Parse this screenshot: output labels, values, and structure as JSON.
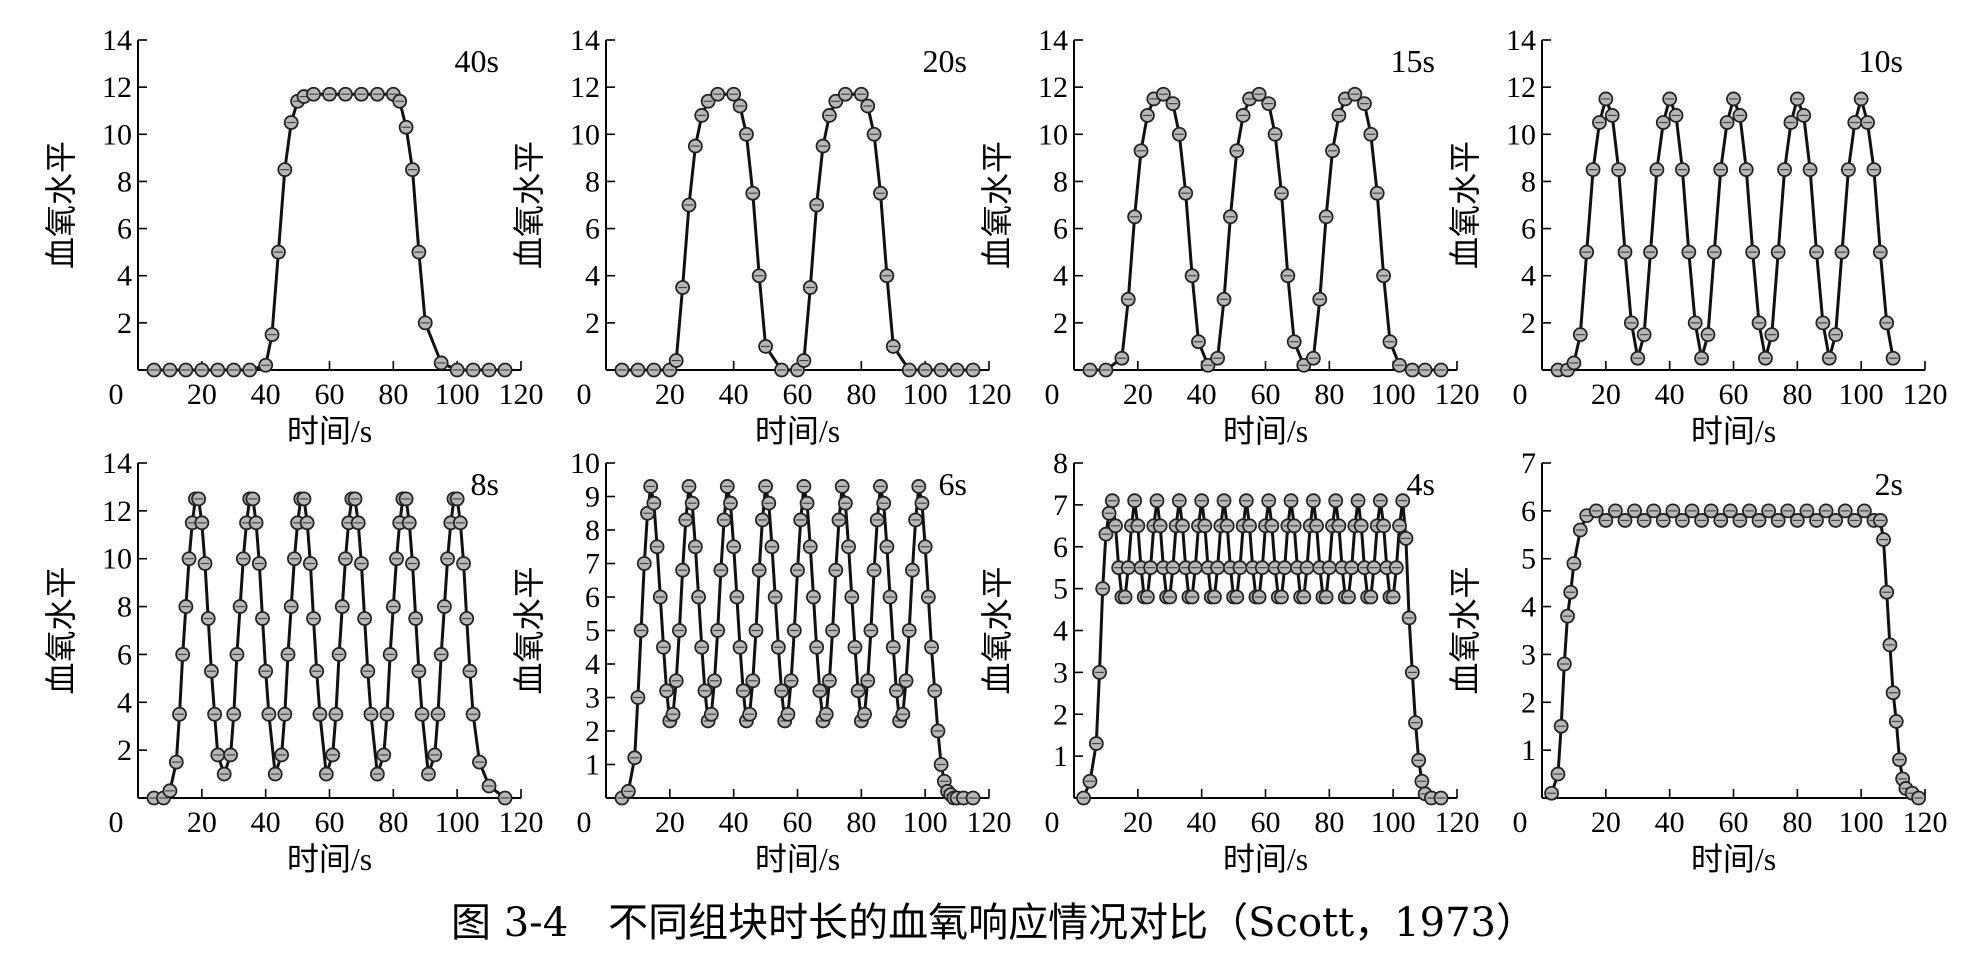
{
  "caption": "图 3-4　不同组块时长的血氧响应情况对比（Scott，1973）",
  "chart_data": [
    {
      "type": "line",
      "title": "",
      "annotation": "40s",
      "xlabel": "时间/s",
      "ylabel": "血氧水平",
      "xlim": [
        0,
        120
      ],
      "ylim": [
        0,
        14
      ],
      "xticks": [
        0,
        20,
        40,
        60,
        80,
        100,
        120
      ],
      "yticks": [
        2,
        4,
        6,
        8,
        10,
        12,
        14
      ],
      "x": [
        5,
        10,
        15,
        20,
        25,
        30,
        35,
        40,
        42,
        44,
        46,
        48,
        50,
        52,
        55,
        60,
        65,
        70,
        75,
        80,
        82,
        84,
        86,
        88,
        90,
        95,
        100,
        105,
        110,
        115
      ],
      "y": [
        0,
        0,
        0,
        0,
        0,
        0,
        0,
        0.2,
        1.5,
        5,
        8.5,
        10.5,
        11.4,
        11.6,
        11.7,
        11.7,
        11.7,
        11.7,
        11.7,
        11.7,
        11.4,
        10.3,
        8.5,
        5,
        2,
        0.3,
        0,
        0,
        0,
        0
      ]
    },
    {
      "type": "line",
      "title": "",
      "annotation": "20s",
      "xlabel": "时间/s",
      "ylabel": "血氧水平",
      "xlim": [
        0,
        120
      ],
      "ylim": [
        0,
        14
      ],
      "xticks": [
        0,
        20,
        40,
        60,
        80,
        100,
        120
      ],
      "yticks": [
        2,
        4,
        6,
        8,
        10,
        12,
        14
      ],
      "x": [
        5,
        10,
        15,
        20,
        22,
        24,
        26,
        28,
        30,
        32,
        35,
        40,
        42,
        44,
        46,
        48,
        50,
        55,
        60,
        62,
        64,
        66,
        68,
        70,
        72,
        75,
        80,
        82,
        84,
        86,
        88,
        90,
        95,
        100,
        105,
        110,
        115
      ],
      "y": [
        0,
        0,
        0,
        0,
        0.4,
        3.5,
        7,
        9.5,
        10.8,
        11.4,
        11.7,
        11.7,
        11.2,
        10,
        7.5,
        4,
        1,
        0,
        0,
        0.4,
        3.5,
        7,
        9.5,
        10.8,
        11.4,
        11.7,
        11.7,
        11.2,
        10,
        7.5,
        4,
        1,
        0,
        0,
        0,
        0,
        0
      ]
    },
    {
      "type": "line",
      "title": "",
      "annotation": "15s",
      "xlabel": "时间/s",
      "ylabel": "血氧水平",
      "xlim": [
        0,
        120
      ],
      "ylim": [
        0,
        14
      ],
      "xticks": [
        0,
        20,
        40,
        60,
        80,
        100,
        120
      ],
      "yticks": [
        2,
        4,
        6,
        8,
        10,
        12,
        14
      ],
      "x": [
        5,
        10,
        15,
        17,
        19,
        21,
        23,
        25,
        28,
        31,
        33,
        35,
        37,
        39,
        42,
        45,
        47,
        49,
        51,
        53,
        55,
        58,
        61,
        63,
        65,
        67,
        69,
        72,
        75,
        77,
        79,
        81,
        83,
        85,
        88,
        91,
        93,
        95,
        97,
        99,
        102,
        106,
        110,
        115
      ],
      "y": [
        0,
        0,
        0.5,
        3,
        6.5,
        9.3,
        10.8,
        11.5,
        11.7,
        11.3,
        10,
        7.5,
        4,
        1.2,
        0.2,
        0.5,
        3,
        6.5,
        9.3,
        10.8,
        11.5,
        11.7,
        11.3,
        10,
        7.5,
        4,
        1.2,
        0.2,
        0.5,
        3,
        6.5,
        9.3,
        10.8,
        11.5,
        11.7,
        11.3,
        10,
        7.5,
        4,
        1.2,
        0.2,
        0,
        0,
        0
      ]
    },
    {
      "type": "line",
      "title": "",
      "annotation": "10s",
      "xlabel": "时间/s",
      "ylabel": "血氧水平",
      "xlim": [
        0,
        120
      ],
      "ylim": [
        0,
        14
      ],
      "xticks": [
        0,
        20,
        40,
        60,
        80,
        100,
        120
      ],
      "yticks": [
        2,
        4,
        6,
        8,
        10,
        12,
        14
      ],
      "x": [
        5,
        8,
        10,
        12,
        14,
        16,
        18,
        20,
        22,
        24,
        26,
        28,
        30,
        32,
        34,
        36,
        38,
        40,
        42,
        44,
        46,
        48,
        50,
        52,
        54,
        56,
        58,
        60,
        62,
        64,
        66,
        68,
        70,
        72,
        74,
        76,
        78,
        80,
        82,
        84,
        86,
        88,
        90,
        92,
        94,
        96,
        98,
        100,
        102,
        104,
        106,
        108,
        110
      ],
      "y": [
        0,
        0,
        0.3,
        1.5,
        5,
        8.5,
        10.5,
        11.5,
        10.8,
        8.5,
        5,
        2,
        0.5,
        1.5,
        5,
        8.5,
        10.5,
        11.5,
        10.8,
        8.5,
        5,
        2,
        0.5,
        1.5,
        5,
        8.5,
        10.5,
        11.5,
        10.8,
        8.5,
        5,
        2,
        0.5,
        1.5,
        5,
        8.5,
        10.5,
        11.5,
        10.8,
        8.5,
        5,
        2,
        0.5,
        1.5,
        5,
        8.5,
        10.5,
        11.5,
        10.5,
        8.5,
        5,
        2,
        0.5
      ]
    },
    {
      "type": "line",
      "title": "",
      "annotation": "8s",
      "xlabel": "时间/s",
      "ylabel": "血氧水平",
      "xlim": [
        0,
        120
      ],
      "ylim": [
        0,
        14
      ],
      "xticks": [
        0,
        20,
        40,
        60,
        80,
        100,
        120
      ],
      "yticks": [
        2,
        4,
        6,
        8,
        10,
        12,
        14
      ],
      "x": [
        5,
        8,
        10,
        12,
        13,
        14,
        15,
        16,
        17,
        18,
        19,
        20,
        21,
        22,
        23,
        24,
        25,
        27,
        29,
        30,
        31,
        32,
        33,
        34,
        35,
        36,
        37,
        38,
        39,
        40,
        41,
        43,
        45,
        46,
        47,
        48,
        49,
        50,
        51,
        52,
        53,
        54,
        55,
        56,
        57,
        59,
        61,
        62,
        63,
        64,
        65,
        66,
        67,
        68,
        69,
        70,
        71,
        72,
        73,
        75,
        77,
        78,
        79,
        80,
        81,
        82,
        83,
        84,
        85,
        86,
        87,
        88,
        89,
        91,
        93,
        94,
        95,
        96,
        97,
        98,
        99,
        100,
        101,
        102,
        103,
        104,
        105,
        107,
        110,
        115
      ],
      "y": [
        0,
        0,
        0.3,
        1.5,
        3.5,
        6,
        8,
        10,
        11.5,
        12.5,
        12.5,
        11.5,
        9.8,
        7.5,
        5.3,
        3.5,
        1.8,
        1,
        1.8,
        3.5,
        6,
        8,
        10,
        11.5,
        12.5,
        12.5,
        11.5,
        9.8,
        7.5,
        5.3,
        3.5,
        1,
        1.8,
        3.5,
        6,
        8,
        10,
        11.5,
        12.5,
        12.5,
        11.5,
        9.8,
        7.5,
        5.3,
        3.5,
        1,
        1.8,
        3.5,
        6,
        8,
        10,
        11.5,
        12.5,
        12.5,
        11.5,
        9.8,
        7.5,
        5.3,
        3.5,
        1,
        1.8,
        3.5,
        6,
        8,
        10,
        11.5,
        12.5,
        12.5,
        11.5,
        9.8,
        7.5,
        5.3,
        3.5,
        1,
        1.8,
        3.5,
        6,
        8,
        10,
        11.5,
        12.5,
        12.5,
        11.5,
        9.8,
        7.5,
        5.3,
        3.5,
        1.5,
        0.5,
        0
      ]
    },
    {
      "type": "line",
      "title": "",
      "annotation": "6s",
      "xlabel": "时间/s",
      "ylabel": "血氧水平",
      "xlim": [
        0,
        120
      ],
      "ylim": [
        0,
        10
      ],
      "xticks": [
        0,
        20,
        40,
        60,
        80,
        100,
        120
      ],
      "yticks": [
        1,
        2,
        3,
        4,
        5,
        6,
        7,
        8,
        9,
        10
      ],
      "x": [
        5,
        7,
        9,
        10,
        11,
        12,
        13,
        14,
        15,
        16,
        17,
        18,
        19,
        20,
        21,
        22,
        23,
        24,
        25,
        26,
        27,
        28,
        29,
        30,
        31,
        32,
        33,
        34,
        35,
        36,
        37,
        38,
        39,
        40,
        41,
        42,
        43,
        44,
        45,
        46,
        47,
        48,
        49,
        50,
        51,
        52,
        53,
        54,
        55,
        56,
        57,
        58,
        59,
        60,
        61,
        62,
        63,
        64,
        65,
        66,
        67,
        68,
        69,
        70,
        71,
        72,
        73,
        74,
        75,
        76,
        77,
        78,
        79,
        80,
        81,
        82,
        83,
        84,
        85,
        86,
        87,
        88,
        89,
        90,
        91,
        92,
        93,
        94,
        95,
        96,
        97,
        98,
        99,
        100,
        101,
        102,
        103,
        104,
        105,
        106,
        107,
        108,
        109,
        110,
        112,
        115
      ],
      "y": [
        0,
        0.2,
        1.2,
        3,
        5,
        7,
        8.5,
        9.3,
        8.8,
        7.5,
        6,
        4.5,
        3.2,
        2.3,
        2.5,
        3.5,
        5,
        6.8,
        8.3,
        9.3,
        8.8,
        7.5,
        6,
        4.5,
        3.2,
        2.3,
        2.5,
        3.5,
        5,
        6.8,
        8.3,
        9.3,
        8.8,
        7.5,
        6,
        4.5,
        3.2,
        2.3,
        2.5,
        3.5,
        5,
        6.8,
        8.3,
        9.3,
        8.8,
        7.5,
        6,
        4.5,
        3.2,
        2.3,
        2.5,
        3.5,
        5,
        6.8,
        8.3,
        9.3,
        8.8,
        7.5,
        6,
        4.5,
        3.2,
        2.3,
        2.5,
        3.5,
        5,
        6.8,
        8.3,
        9.3,
        8.8,
        7.5,
        6,
        4.5,
        3.2,
        2.3,
        2.5,
        3.5,
        5,
        6.8,
        8.3,
        9.3,
        8.8,
        7.5,
        6,
        4.5,
        3.2,
        2.3,
        2.5,
        3.5,
        5,
        6.8,
        8.3,
        9.3,
        8.8,
        7.5,
        6,
        4.5,
        3.2,
        2,
        1,
        0.5,
        0.2,
        0.1,
        0,
        0,
        0,
        0
      ]
    },
    {
      "type": "line",
      "title": "",
      "annotation": "4s",
      "xlabel": "时间/s",
      "ylabel": "血氧水平",
      "xlim": [
        0,
        120
      ],
      "ylim": [
        0,
        8
      ],
      "xticks": [
        0,
        20,
        40,
        60,
        80,
        100,
        120
      ],
      "yticks": [
        1,
        2,
        3,
        4,
        5,
        6,
        7,
        8
      ],
      "x": [
        3,
        5,
        7,
        8,
        9,
        10,
        11,
        12,
        13,
        14,
        15,
        16,
        17,
        18,
        19,
        20,
        21,
        22,
        23,
        24,
        25,
        26,
        27,
        28,
        29,
        30,
        31,
        32,
        33,
        34,
        35,
        36,
        37,
        38,
        39,
        40,
        41,
        42,
        43,
        44,
        45,
        46,
        47,
        48,
        49,
        50,
        51,
        52,
        53,
        54,
        55,
        56,
        57,
        58,
        59,
        60,
        61,
        62,
        63,
        64,
        65,
        66,
        67,
        68,
        69,
        70,
        71,
        72,
        73,
        74,
        75,
        76,
        77,
        78,
        79,
        80,
        81,
        82,
        83,
        84,
        85,
        86,
        87,
        88,
        89,
        90,
        91,
        92,
        93,
        94,
        95,
        96,
        97,
        98,
        99,
        100,
        101,
        102,
        103,
        104,
        105,
        106,
        107,
        108,
        109,
        110,
        112,
        115
      ],
      "y": [
        0,
        0.4,
        1.3,
        3,
        5,
        6.3,
        6.8,
        7.1,
        6.5,
        5.5,
        4.8,
        4.8,
        5.5,
        6.5,
        7.1,
        6.5,
        5.5,
        4.8,
        4.8,
        5.5,
        6.5,
        7.1,
        6.5,
        5.5,
        4.8,
        4.8,
        5.5,
        6.5,
        7.1,
        6.5,
        5.5,
        4.8,
        4.8,
        5.5,
        6.5,
        7.1,
        6.5,
        5.5,
        4.8,
        4.8,
        5.5,
        6.5,
        7.1,
        6.5,
        5.5,
        4.8,
        4.8,
        5.5,
        6.5,
        7.1,
        6.5,
        5.5,
        4.8,
        4.8,
        5.5,
        6.5,
        7.1,
        6.5,
        5.5,
        4.8,
        4.8,
        5.5,
        6.5,
        7.1,
        6.5,
        5.5,
        4.8,
        4.8,
        5.5,
        6.5,
        7.1,
        6.5,
        5.5,
        4.8,
        4.8,
        5.5,
        6.5,
        7.1,
        6.5,
        5.5,
        4.8,
        4.8,
        5.5,
        6.5,
        7.1,
        6.5,
        5.5,
        4.8,
        4.8,
        5.5,
        6.5,
        7.1,
        6.5,
        5.5,
        4.8,
        4.8,
        5.5,
        6.5,
        7.1,
        6.2,
        4.3,
        3,
        1.8,
        0.9,
        0.4,
        0.1,
        0,
        0
      ]
    },
    {
      "type": "line",
      "title": "",
      "annotation": "2s",
      "xlabel": "时间/s",
      "ylabel": "血氧水平",
      "xlim": [
        0,
        120
      ],
      "ylim": [
        0,
        7
      ],
      "xticks": [
        0,
        20,
        40,
        60,
        80,
        100,
        120
      ],
      "yticks": [
        1,
        2,
        3,
        4,
        5,
        6,
        7
      ],
      "x": [
        3,
        5,
        6,
        7,
        8,
        9,
        10,
        12,
        14,
        17,
        20,
        23,
        26,
        29,
        32,
        35,
        38,
        41,
        44,
        47,
        50,
        53,
        56,
        59,
        62,
        65,
        68,
        71,
        74,
        77,
        80,
        83,
        86,
        89,
        92,
        95,
        98,
        101,
        104,
        106,
        107,
        108,
        109,
        110,
        111,
        112,
        113,
        114,
        116,
        118
      ],
      "y": [
        0.1,
        0.5,
        1.5,
        2.8,
        3.8,
        4.3,
        4.9,
        5.6,
        5.9,
        6,
        5.8,
        6,
        5.8,
        6,
        5.8,
        6,
        5.8,
        6,
        5.8,
        6,
        5.8,
        6,
        5.8,
        6,
        5.8,
        6,
        5.8,
        6,
        5.8,
        6,
        5.8,
        6,
        5.8,
        6,
        5.8,
        6,
        5.8,
        6,
        5.8,
        5.8,
        5.4,
        4.3,
        3.2,
        2.2,
        1.6,
        0.8,
        0.4,
        0.2,
        0.1,
        0
      ]
    }
  ]
}
